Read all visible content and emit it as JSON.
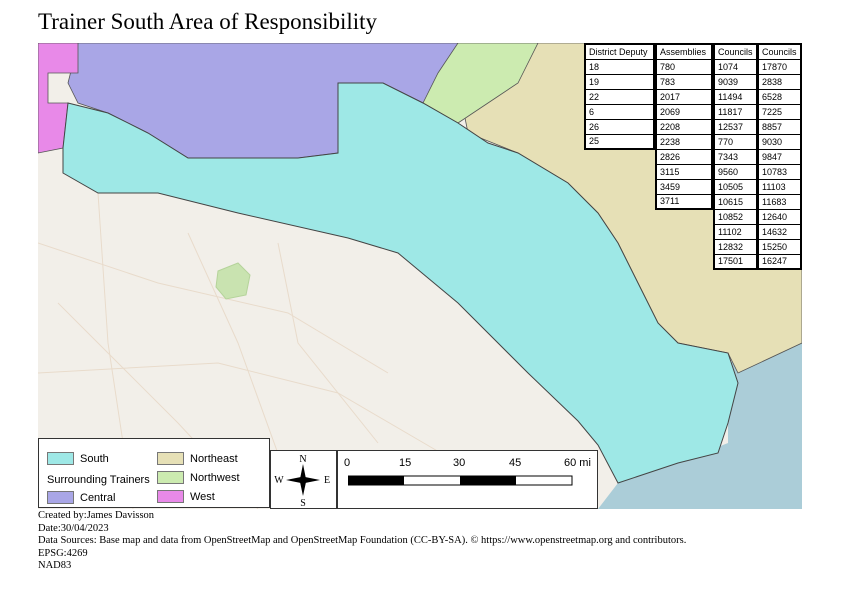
{
  "title": "Trainer South Area of Responsibility",
  "colors": {
    "south": "#9ee8e6",
    "central": "#a9a6e6",
    "northeast": "#e6e0b6",
    "northwest": "#ccebb0",
    "west": "#e889e8",
    "basemap": "#f2efe9",
    "water": "#abcdd8"
  },
  "tables": {
    "district_deputy": {
      "header": "District Deputy",
      "values": [
        "18",
        "19",
        "22",
        "6",
        "26",
        "25"
      ]
    },
    "assemblies": {
      "header": "Assemblies",
      "values": [
        "780",
        "783",
        "2017",
        "2069",
        "2208",
        "2238",
        "2826",
        "3115",
        "3459",
        "3711"
      ]
    },
    "councils_1": {
      "header": "Councils",
      "values": [
        "1074",
        "9039",
        "11494",
        "11817",
        "12537",
        "770",
        "7343",
        "9560",
        "10505",
        "10615",
        "10852",
        "11102",
        "12832",
        "17501"
      ]
    },
    "councils_2": {
      "header": "Councils",
      "values": [
        "17870",
        "2838",
        "6528",
        "7225",
        "8857",
        "9030",
        "9847",
        "10783",
        "11103",
        "11683",
        "12640",
        "14632",
        "15250",
        "16247"
      ]
    }
  },
  "legend": {
    "south": "South",
    "surrounding_title": "Surrounding Trainers",
    "central": "Central",
    "northeast": "Northeast",
    "northwest": "Northwest",
    "west": "West"
  },
  "compass": {
    "n": "N",
    "s": "S",
    "e": "E",
    "w": "W"
  },
  "scale": {
    "ticks": [
      "0",
      "15",
      "30",
      "45",
      "60 mi"
    ]
  },
  "footer": {
    "created": "Created by:James Davisson",
    "date": "Date:30/04/2023",
    "sources": "Data Sources:  Base map and data from OpenStreetMap and OpenStreetMap Foundation (CC-BY-SA). © https://www.openstreetmap.org and contributors.",
    "epsg": "EPSG:4269",
    "datum": "NAD83"
  }
}
